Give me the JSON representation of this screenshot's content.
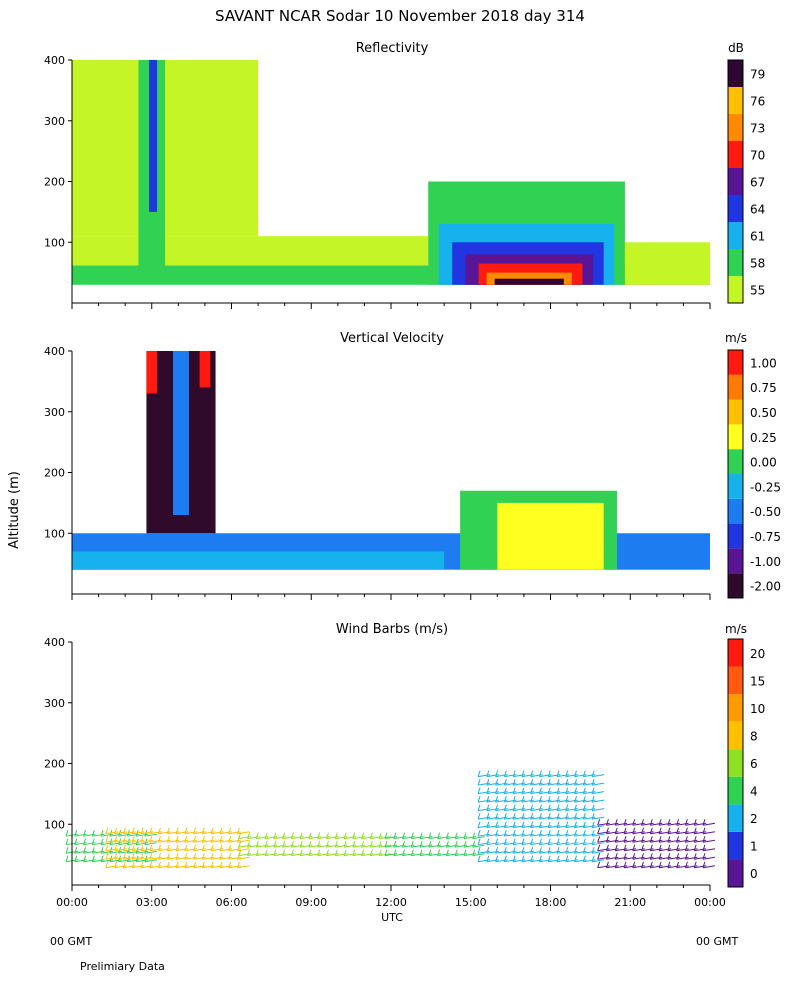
{
  "title": "SAVANT  NCAR Sodar  10 November 2018  day 314",
  "y_axis_label": "Altitude (m)",
  "x_axis_label": "UTC",
  "footer": {
    "left_gmt": "00 GMT",
    "right_gmt": "00 GMT",
    "note": "Prelimiary Data"
  },
  "chart_data": [
    {
      "type": "heatmap",
      "title": "Reflectivity",
      "unit": "dB",
      "xlim": [
        0,
        24
      ],
      "ylim": [
        0,
        400
      ],
      "y_ticks": [
        "100",
        "200",
        "300",
        "400"
      ],
      "colorbar_levels": [
        "55",
        "58",
        "61",
        "64",
        "67",
        "70",
        "73",
        "76",
        "79"
      ],
      "colorbar_colors": [
        "#c4f527",
        "#31d154",
        "#17b2ee",
        "#1f36e0",
        "#5a1596",
        "#ff1a10",
        "#ff8a00",
        "#ffc000",
        "#2e0833"
      ],
      "regions": [
        {
          "x0": 0.0,
          "x1": 24.0,
          "y0": 30,
          "y1": 62,
          "level": "58"
        },
        {
          "x0": 0.0,
          "x1": 13.4,
          "y0": 62,
          "y1": 110,
          "level": "55"
        },
        {
          "x0": 0.0,
          "x1": 2.5,
          "y0": 110,
          "y1": 400,
          "level": "55"
        },
        {
          "x0": 2.5,
          "x1": 3.5,
          "y0": 40,
          "y1": 400,
          "level": "58"
        },
        {
          "x0": 2.9,
          "x1": 3.2,
          "y0": 150,
          "y1": 400,
          "level": "64"
        },
        {
          "x0": 3.5,
          "x1": 7.0,
          "y0": 110,
          "y1": 400,
          "level": "55"
        },
        {
          "x0": 13.4,
          "x1": 20.8,
          "y0": 30,
          "y1": 200,
          "level": "58"
        },
        {
          "x0": 13.8,
          "x1": 20.4,
          "y0": 30,
          "y1": 130,
          "level": "61"
        },
        {
          "x0": 14.3,
          "x1": 20.0,
          "y0": 30,
          "y1": 100,
          "level": "64"
        },
        {
          "x0": 14.8,
          "x1": 19.6,
          "y0": 30,
          "y1": 80,
          "level": "67"
        },
        {
          "x0": 15.3,
          "x1": 19.2,
          "y0": 30,
          "y1": 65,
          "level": "70"
        },
        {
          "x0": 15.6,
          "x1": 18.8,
          "y0": 30,
          "y1": 50,
          "level": "73"
        },
        {
          "x0": 15.9,
          "x1": 18.5,
          "y0": 30,
          "y1": 40,
          "level": "79"
        },
        {
          "x0": 20.8,
          "x1": 24.0,
          "y0": 30,
          "y1": 100,
          "level": "55"
        }
      ]
    },
    {
      "type": "heatmap",
      "title": "Vertical Velocity",
      "unit": "m/s",
      "xlim": [
        0,
        24
      ],
      "ylim": [
        0,
        400
      ],
      "y_ticks": [
        "100",
        "200",
        "300",
        "400"
      ],
      "colorbar_levels": [
        "-2.00",
        "-1.00",
        "-0.75",
        "-0.50",
        "-0.25",
        "0.00",
        "0.25",
        "0.50",
        "0.75",
        "1.00"
      ],
      "colorbar_colors": [
        "#300a2a",
        "#5a1596",
        "#1f36e0",
        "#1d7cf0",
        "#17b2ee",
        "#31d154",
        "#ffff20",
        "#ffc000",
        "#ff7a00",
        "#ff1a10"
      ],
      "regions": [
        {
          "x0": 0.0,
          "x1": 24.0,
          "y0": 40,
          "y1": 100,
          "level": "-0.50"
        },
        {
          "x0": 0.0,
          "x1": 14.0,
          "y0": 40,
          "y1": 70,
          "level": "-0.25"
        },
        {
          "x0": 2.8,
          "x1": 5.4,
          "y0": 100,
          "y1": 400,
          "level": "-2.00"
        },
        {
          "x0": 3.8,
          "x1": 4.4,
          "y0": 130,
          "y1": 400,
          "level": "-0.50"
        },
        {
          "x0": 14.6,
          "x1": 20.5,
          "y0": 40,
          "y1": 170,
          "level": "0.00"
        },
        {
          "x0": 16.0,
          "x1": 20.0,
          "y0": 40,
          "y1": 150,
          "level": "0.25"
        },
        {
          "x0": 2.8,
          "x1": 3.2,
          "y0": 330,
          "y1": 400,
          "level": "1.00"
        },
        {
          "x0": 4.8,
          "x1": 5.2,
          "y0": 340,
          "y1": 400,
          "level": "1.00"
        }
      ]
    },
    {
      "type": "scatter",
      "title": "Wind Barbs (m/s)",
      "unit": "m/s",
      "xlim": [
        0,
        24
      ],
      "ylim": [
        0,
        400
      ],
      "y_ticks": [
        "100",
        "200",
        "300",
        "400"
      ],
      "x_ticks": [
        "00:00",
        "03:00",
        "06:00",
        "09:00",
        "12:00",
        "15:00",
        "18:00",
        "21:00",
        "00:00"
      ],
      "colorbar_levels": [
        "0",
        "1",
        "2",
        "4",
        "6",
        "8",
        "10",
        "15",
        "20"
      ],
      "colorbar_colors": [
        "#5a1596",
        "#1f36e0",
        "#17b2ee",
        "#31d154",
        "#8ee022",
        "#ffc000",
        "#ff9a00",
        "#ff5a10",
        "#ff1a10"
      ],
      "bands": [
        {
          "x0": 0.0,
          "x1": 3.0,
          "y0": 40,
          "y1": 90,
          "level": "4"
        },
        {
          "x0": 1.5,
          "x1": 6.5,
          "y0": 30,
          "y1": 90,
          "level": "8"
        },
        {
          "x0": 6.5,
          "x1": 12.0,
          "y0": 50,
          "y1": 90,
          "level": "6"
        },
        {
          "x0": 12.0,
          "x1": 15.5,
          "y0": 50,
          "y1": 90,
          "level": "4"
        },
        {
          "x0": 15.5,
          "x1": 20.0,
          "y0": 40,
          "y1": 190,
          "level": "2"
        },
        {
          "x0": 20.0,
          "x1": 24.0,
          "y0": 30,
          "y1": 100,
          "level": "0"
        }
      ]
    }
  ]
}
